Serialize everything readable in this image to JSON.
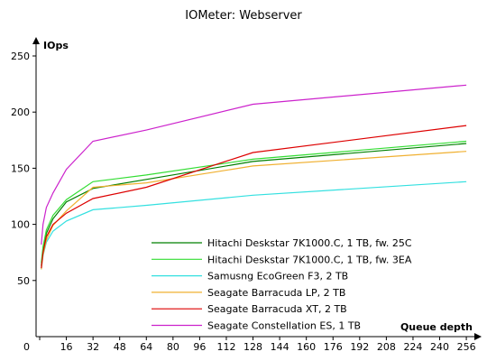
{
  "chart_data": {
    "type": "line",
    "title": "IOMeter: Webserver",
    "ylabel": "IOps",
    "xlabel": "Queue depth",
    "xlim": [
      0,
      260
    ],
    "ylim": [
      0,
      250
    ],
    "xticks": [
      0,
      16,
      32,
      48,
      64,
      80,
      96,
      112,
      128,
      144,
      160,
      176,
      192,
      208,
      224,
      240,
      256
    ],
    "yticks": [
      50,
      100,
      150,
      200,
      250
    ],
    "grid": false,
    "legend_position": "bottom-center",
    "x": [
      1,
      2,
      4,
      8,
      16,
      32,
      64,
      128,
      256
    ],
    "series": [
      {
        "name": "Hitachi Deskstar 7K1000.C, 1 TB, fw. 25C",
        "color": "#008000",
        "values": [
          63,
          77,
          92,
          105,
          120,
          132,
          140,
          156,
          172
        ]
      },
      {
        "name": "Hitachi Deskstar 7K1000.C, 1 TB, fw. 3EA",
        "color": "#33dd33",
        "values": [
          66,
          80,
          95,
          108,
          122,
          138,
          144,
          158,
          174
        ]
      },
      {
        "name": "Samusng EcoGreen F3, 2 TB",
        "color": "#33e0e0",
        "values": [
          60,
          72,
          84,
          94,
          103,
          113,
          117,
          126,
          138
        ]
      },
      {
        "name": "Seagate Barracuda LP, 2 TB",
        "color": "#f0b030",
        "values": [
          60,
          73,
          86,
          99,
          112,
          133,
          137,
          152,
          165
        ]
      },
      {
        "name": "Seagate Barracuda XT, 2 TB",
        "color": "#dd0000",
        "values": [
          61,
          75,
          89,
          100,
          110,
          123,
          133,
          164,
          188
        ]
      },
      {
        "name": "Seagate Constellation ES, 1 TB",
        "color": "#cc22cc",
        "values": [
          82,
          100,
          115,
          128,
          149,
          174,
          184,
          207,
          224
        ]
      }
    ]
  }
}
